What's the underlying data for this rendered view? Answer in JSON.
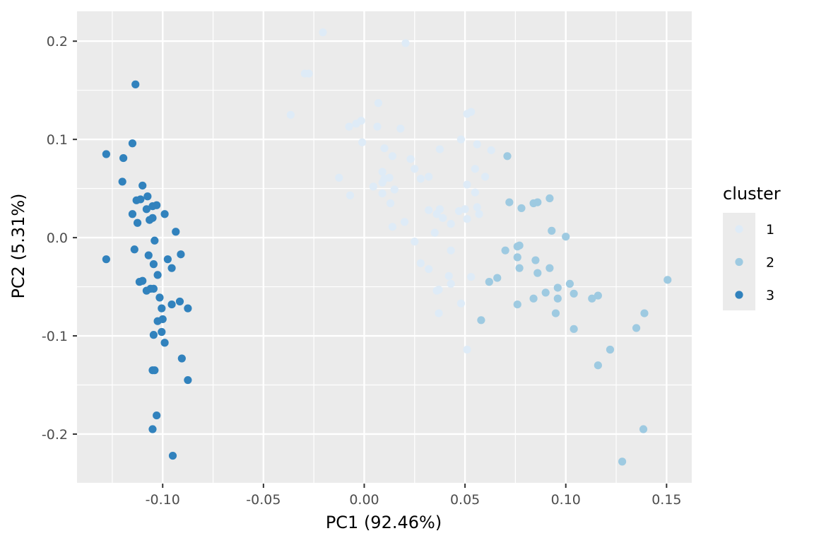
{
  "chart_data": {
    "type": "scatter",
    "xlabel": "PC1 (92.46%)",
    "ylabel": "PC2 (5.31%)",
    "xlim": [
      -0.1425,
      0.1625
    ],
    "ylim": [
      -0.2504,
      0.2304
    ],
    "x_ticks": [
      -0.1,
      -0.05,
      0.0,
      0.05,
      0.1,
      0.15
    ],
    "x_tick_labels": [
      "-0.10",
      "-0.05",
      "0.00",
      "0.05",
      "0.10",
      "0.15"
    ],
    "y_ticks": [
      -0.2,
      -0.1,
      0.0,
      0.1,
      0.2
    ],
    "y_tick_labels": [
      "-0.2",
      "-0.1",
      "0.0",
      "0.1",
      "0.2"
    ],
    "grid": true,
    "panel_background": "#ebebeb",
    "legend": {
      "title": "cluster",
      "placement": "right",
      "entries": [
        {
          "label": "1",
          "color": "#deebf7"
        },
        {
          "label": "2",
          "color": "#9ecae1"
        },
        {
          "label": "3",
          "color": "#3182bd"
        }
      ]
    },
    "series": [
      {
        "color": "#deebf7",
        "points": [
          [
            -0.0205,
            0.209
          ],
          [
            0.0205,
            0.198
          ],
          [
            -0.0295,
            0.167
          ],
          [
            -0.0275,
            0.167
          ],
          [
            -0.0365,
            0.125
          ],
          [
            0.007,
            0.137
          ],
          [
            0.051,
            0.126
          ],
          [
            0.053,
            0.128
          ],
          [
            -0.0075,
            0.113
          ],
          [
            -0.004,
            0.116
          ],
          [
            -0.0015,
            0.119
          ],
          [
            0.0065,
            0.113
          ],
          [
            0.018,
            0.111
          ],
          [
            0.048,
            0.1
          ],
          [
            0.056,
            0.095
          ],
          [
            -0.001,
            0.097
          ],
          [
            0.01,
            0.091
          ],
          [
            0.0375,
            0.09
          ],
          [
            0.014,
            0.083
          ],
          [
            0.063,
            0.089
          ],
          [
            0.023,
            0.08
          ],
          [
            0.025,
            0.07
          ],
          [
            0.028,
            0.06
          ],
          [
            0.032,
            0.062
          ],
          [
            -0.0125,
            0.061
          ],
          [
            0.009,
            0.067
          ],
          [
            0.01,
            0.06
          ],
          [
            0.0125,
            0.061
          ],
          [
            0.055,
            0.07
          ],
          [
            0.06,
            0.062
          ],
          [
            0.0045,
            0.052
          ],
          [
            0.009,
            0.056
          ],
          [
            0.015,
            0.049
          ],
          [
            0.009,
            0.045
          ],
          [
            0.013,
            0.035
          ],
          [
            0.051,
            0.054
          ],
          [
            0.055,
            0.046
          ],
          [
            -0.007,
            0.043
          ],
          [
            0.032,
            0.028
          ],
          [
            0.036,
            0.024
          ],
          [
            0.0375,
            0.029
          ],
          [
            0.047,
            0.027
          ],
          [
            0.05,
            0.029
          ],
          [
            0.056,
            0.031
          ],
          [
            0.057,
            0.024
          ],
          [
            0.014,
            0.011
          ],
          [
            0.02,
            0.016
          ],
          [
            0.039,
            0.02
          ],
          [
            0.043,
            0.014
          ],
          [
            0.051,
            0.019
          ],
          [
            0.035,
            0.005
          ],
          [
            0.025,
            -0.004
          ],
          [
            0.043,
            -0.013
          ],
          [
            0.028,
            -0.026
          ],
          [
            0.032,
            -0.032
          ],
          [
            0.042,
            -0.039
          ],
          [
            0.043,
            -0.047
          ],
          [
            0.053,
            -0.04
          ],
          [
            0.036,
            -0.054
          ],
          [
            0.037,
            -0.053
          ],
          [
            0.048,
            -0.067
          ],
          [
            0.037,
            -0.077
          ],
          [
            0.051,
            -0.114
          ]
        ]
      },
      {
        "color": "#9ecae1",
        "points": [
          [
            0.071,
            0.083
          ],
          [
            0.072,
            0.036
          ],
          [
            0.078,
            0.03
          ],
          [
            0.084,
            0.035
          ],
          [
            0.086,
            0.036
          ],
          [
            0.092,
            0.04
          ],
          [
            0.093,
            0.007
          ],
          [
            0.1,
            0.001
          ],
          [
            0.07,
            -0.013
          ],
          [
            0.076,
            -0.009
          ],
          [
            0.077,
            -0.008
          ],
          [
            0.076,
            -0.02
          ],
          [
            0.077,
            -0.031
          ],
          [
            0.085,
            -0.023
          ],
          [
            0.092,
            -0.031
          ],
          [
            0.086,
            -0.036
          ],
          [
            0.062,
            -0.045
          ],
          [
            0.066,
            -0.041
          ],
          [
            0.09,
            -0.056
          ],
          [
            0.096,
            -0.051
          ],
          [
            0.102,
            -0.047
          ],
          [
            0.104,
            -0.057
          ],
          [
            0.084,
            -0.062
          ],
          [
            0.096,
            -0.062
          ],
          [
            0.113,
            -0.062
          ],
          [
            0.116,
            -0.059
          ],
          [
            0.076,
            -0.068
          ],
          [
            0.095,
            -0.077
          ],
          [
            0.139,
            -0.077
          ],
          [
            0.1505,
            -0.043
          ],
          [
            0.058,
            -0.084
          ],
          [
            0.104,
            -0.093
          ],
          [
            0.135,
            -0.092
          ],
          [
            0.122,
            -0.114
          ],
          [
            0.116,
            -0.13
          ],
          [
            0.1385,
            -0.195
          ],
          [
            0.128,
            -0.228
          ]
        ]
      },
      {
        "color": "#3182bd",
        "points": [
          [
            -0.1135,
            0.156
          ],
          [
            -0.115,
            0.096
          ],
          [
            -0.128,
            0.085
          ],
          [
            -0.1195,
            0.081
          ],
          [
            -0.12,
            0.057
          ],
          [
            -0.11,
            0.053
          ],
          [
            -0.1075,
            0.042
          ],
          [
            -0.111,
            0.039
          ],
          [
            -0.113,
            0.038
          ],
          [
            -0.105,
            0.032
          ],
          [
            -0.103,
            0.033
          ],
          [
            -0.108,
            0.029
          ],
          [
            -0.099,
            0.024
          ],
          [
            -0.115,
            0.024
          ],
          [
            -0.105,
            0.02
          ],
          [
            -0.1065,
            0.018
          ],
          [
            -0.1125,
            0.015
          ],
          [
            -0.0935,
            0.006
          ],
          [
            -0.104,
            -0.003
          ],
          [
            -0.114,
            -0.012
          ],
          [
            -0.091,
            -0.017
          ],
          [
            -0.107,
            -0.018
          ],
          [
            -0.128,
            -0.022
          ],
          [
            -0.0975,
            -0.022
          ],
          [
            -0.1045,
            -0.027
          ],
          [
            -0.0955,
            -0.031
          ],
          [
            -0.1025,
            -0.038
          ],
          [
            -0.11,
            -0.044
          ],
          [
            -0.1115,
            -0.045
          ],
          [
            -0.106,
            -0.052
          ],
          [
            -0.1045,
            -0.052
          ],
          [
            -0.108,
            -0.054
          ],
          [
            -0.1015,
            -0.061
          ],
          [
            -0.0915,
            -0.065
          ],
          [
            -0.0955,
            -0.068
          ],
          [
            -0.1005,
            -0.072
          ],
          [
            -0.0875,
            -0.072
          ],
          [
            -0.1,
            -0.083
          ],
          [
            -0.1025,
            -0.085
          ],
          [
            -0.1005,
            -0.096
          ],
          [
            -0.1045,
            -0.099
          ],
          [
            -0.099,
            -0.107
          ],
          [
            -0.0905,
            -0.123
          ],
          [
            -0.0875,
            -0.145
          ],
          [
            -0.105,
            -0.135
          ],
          [
            -0.104,
            -0.135
          ],
          [
            -0.103,
            -0.181
          ],
          [
            -0.105,
            -0.195
          ],
          [
            -0.095,
            -0.222
          ]
        ]
      }
    ]
  }
}
